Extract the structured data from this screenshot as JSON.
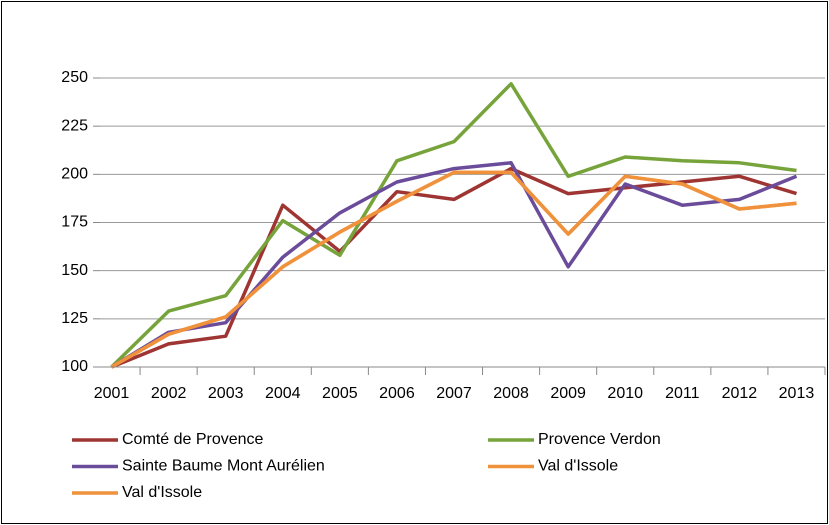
{
  "chart_data": {
    "type": "line",
    "categories": [
      "2001",
      "2002",
      "2003",
      "2004",
      "2005",
      "2006",
      "2007",
      "2008",
      "2009",
      "2010",
      "2011",
      "2012",
      "2013"
    ],
    "series": [
      {
        "name": "Comté de Provence",
        "color": "#9e3533",
        "values": [
          100,
          112,
          116,
          184,
          160,
          191,
          187,
          203,
          190,
          193,
          196,
          199,
          190
        ]
      },
      {
        "name": "Provence Verdon",
        "color": "#77a33b",
        "values": [
          100,
          129,
          137,
          176,
          158,
          207,
          217,
          247,
          199,
          209,
          207,
          206,
          202
        ]
      },
      {
        "name": "Sainte Baume Mont Aurélien",
        "color": "#6b4c9a",
        "values": [
          100,
          118,
          123,
          157,
          180,
          196,
          203,
          206,
          152,
          195,
          184,
          187,
          199
        ]
      },
      {
        "name": "Val d'Issole",
        "color": "#f0913c",
        "values": [
          100,
          117,
          126,
          152,
          170,
          186,
          201,
          201,
          169,
          199,
          195,
          182,
          185
        ]
      },
      {
        "name": "Val d'Issole",
        "color": "#f0913c",
        "values": [
          100,
          117,
          126,
          152,
          170,
          186,
          201,
          201,
          169,
          199,
          195,
          182,
          185
        ]
      }
    ],
    "ylim": [
      100,
      250
    ],
    "yticks": [
      100,
      125,
      150,
      175,
      200,
      225,
      250
    ],
    "grid": true
  }
}
